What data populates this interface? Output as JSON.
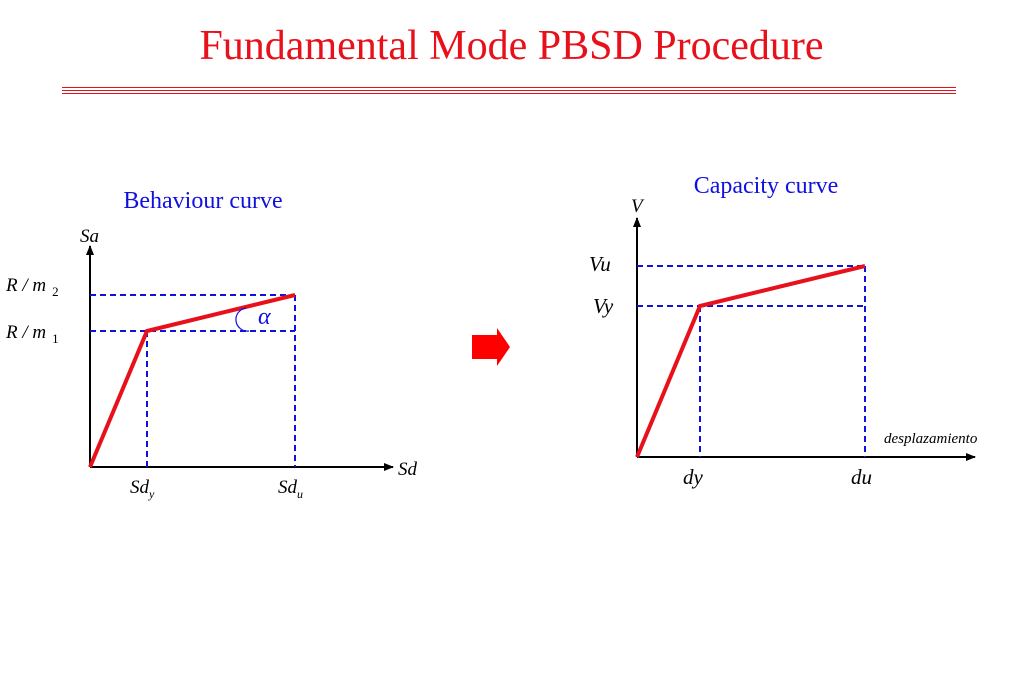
{
  "title": "Fundamental Mode PBSD Procedure",
  "behaviour": {
    "caption": "Behaviour curve",
    "y_axis": "Sa",
    "x_axis": "Sd",
    "level2_base": "R / m",
    "level2_sub": "2",
    "level1_base": "R / m",
    "level1_sub": "1",
    "sdy_base": "Sd",
    "sdy_sub": "y",
    "sdu_base": "Sd",
    "sdu_sub": "u",
    "angle": "α"
  },
  "capacity": {
    "caption": "Capacity curve",
    "y_axis": "V",
    "x_axis": "desplazamiento",
    "vu": "Vu",
    "vy": "Vy",
    "dy": "dy",
    "du": "du"
  },
  "colors": {
    "title": "#e8101a",
    "curve": "#e8101a",
    "guide": "#1010e0",
    "caption": "#1010e0",
    "arrow": "#ff0000"
  },
  "arrow_icon": "right-arrow-icon"
}
